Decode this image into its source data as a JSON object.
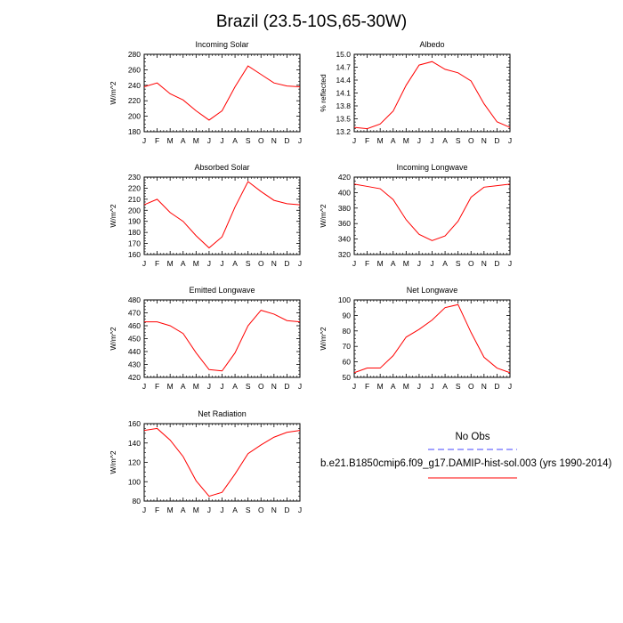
{
  "figure": {
    "title": "Brazil (23.5-10S,65-30W)"
  },
  "legend": {
    "no_obs": "No Obs",
    "model_label": "b.e21.B1850cmip6.f09_g17.DAMIP-hist-sol.003 (yrs 1990-2014)",
    "obs_color": "#6a6aff",
    "model_color": "#ff0000"
  },
  "chart_data": [
    {
      "type": "line",
      "title": "Incoming Solar",
      "ylabel": "W/m^2",
      "categories": [
        "J",
        "F",
        "M",
        "A",
        "M",
        "J",
        "J",
        "A",
        "S",
        "O",
        "N",
        "D",
        "J"
      ],
      "ylim": [
        180,
        280
      ],
      "yticks": [
        180,
        200,
        220,
        240,
        260,
        280
      ],
      "series": [
        {
          "values": [
            238,
            243,
            229,
            221,
            207,
            195,
            207,
            238,
            265,
            254,
            243,
            239,
            238
          ],
          "color": "#ff0000"
        }
      ]
    },
    {
      "type": "line",
      "title": "Albedo",
      "ylabel": "% reflected",
      "categories": [
        "J",
        "F",
        "M",
        "A",
        "M",
        "J",
        "J",
        "A",
        "S",
        "O",
        "N",
        "D",
        "J"
      ],
      "ylim": [
        13.2,
        15.0
      ],
      "yticks": [
        13.2,
        13.5,
        13.8,
        14.1,
        14.4,
        14.7,
        15.0
      ],
      "series": [
        {
          "values": [
            13.3,
            13.27,
            13.38,
            13.68,
            14.28,
            14.75,
            14.83,
            14.65,
            14.57,
            14.38,
            13.85,
            13.43,
            13.3
          ],
          "color": "#ff0000"
        }
      ]
    },
    {
      "type": "line",
      "title": "Absorbed Solar",
      "ylabel": "W/m^2",
      "categories": [
        "J",
        "F",
        "M",
        "A",
        "M",
        "J",
        "J",
        "A",
        "S",
        "O",
        "N",
        "D",
        "J"
      ],
      "ylim": [
        160,
        230
      ],
      "yticks": [
        160,
        170,
        180,
        190,
        200,
        210,
        220,
        230
      ],
      "series": [
        {
          "values": [
            205,
            210,
            198,
            190,
            177,
            166,
            176,
            203,
            226,
            217,
            209,
            206,
            205
          ],
          "color": "#ff0000"
        }
      ]
    },
    {
      "type": "line",
      "title": "Incoming Longwave",
      "ylabel": "W/m^2",
      "categories": [
        "J",
        "F",
        "M",
        "A",
        "M",
        "J",
        "J",
        "A",
        "S",
        "O",
        "N",
        "D",
        "J"
      ],
      "ylim": [
        320,
        420
      ],
      "yticks": [
        320,
        340,
        360,
        380,
        400,
        420
      ],
      "series": [
        {
          "values": [
            411,
            408,
            405,
            391,
            365,
            346,
            338,
            344,
            363,
            394,
            407,
            409,
            411
          ],
          "color": "#ff0000"
        }
      ]
    },
    {
      "type": "line",
      "title": "Emitted Longwave",
      "ylabel": "W/m^2",
      "categories": [
        "J",
        "F",
        "M",
        "A",
        "M",
        "J",
        "J",
        "A",
        "S",
        "O",
        "N",
        "D",
        "J"
      ],
      "ylim": [
        420,
        480
      ],
      "yticks": [
        420,
        430,
        440,
        450,
        460,
        470,
        480
      ],
      "series": [
        {
          "values": [
            463,
            463,
            460,
            454,
            439,
            426,
            425,
            439,
            460,
            472,
            469,
            464,
            463
          ],
          "color": "#ff0000"
        }
      ]
    },
    {
      "type": "line",
      "title": "Net Longwave",
      "ylabel": "W/m^2",
      "categories": [
        "J",
        "F",
        "M",
        "A",
        "M",
        "J",
        "J",
        "A",
        "S",
        "O",
        "N",
        "D",
        "J"
      ],
      "ylim": [
        50,
        100
      ],
      "yticks": [
        50,
        60,
        70,
        80,
        90,
        100
      ],
      "series": [
        {
          "values": [
            53,
            56,
            56,
            64,
            76,
            81,
            87,
            95,
            97,
            79,
            63,
            56,
            53
          ],
          "color": "#ff0000"
        }
      ]
    },
    {
      "type": "line",
      "title": "Net Radiation",
      "ylabel": "W/m^2",
      "categories": [
        "J",
        "F",
        "M",
        "A",
        "M",
        "J",
        "J",
        "A",
        "S",
        "O",
        "N",
        "D",
        "J"
      ],
      "ylim": [
        80,
        160
      ],
      "yticks": [
        80,
        100,
        120,
        140,
        160
      ],
      "series": [
        {
          "values": [
            153,
            155,
            143,
            126,
            101,
            85,
            89,
            108,
            129,
            138,
            146,
            151,
            153
          ],
          "color": "#ff0000"
        }
      ]
    }
  ]
}
